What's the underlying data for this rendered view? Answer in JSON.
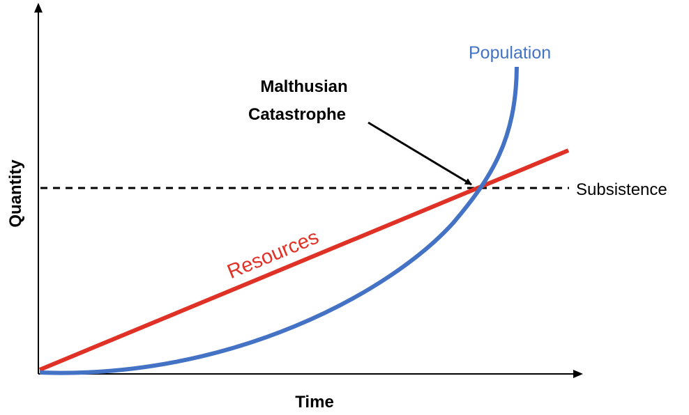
{
  "chart_data": {
    "type": "line",
    "xlabel": "Time",
    "ylabel": "Quantity",
    "grid": false,
    "curves": {
      "resources": {
        "label": "Resources",
        "color": "#e03127",
        "shape": "linear"
      },
      "population": {
        "label": "Population",
        "color": "#4472c4",
        "shape": "exponential"
      },
      "subsistence": {
        "label": "Subsistence",
        "color": "#000000",
        "style": "dashed"
      }
    },
    "annotation": {
      "line1": "Malthusian",
      "line2": "Catastrophe",
      "target": "intersection"
    }
  }
}
